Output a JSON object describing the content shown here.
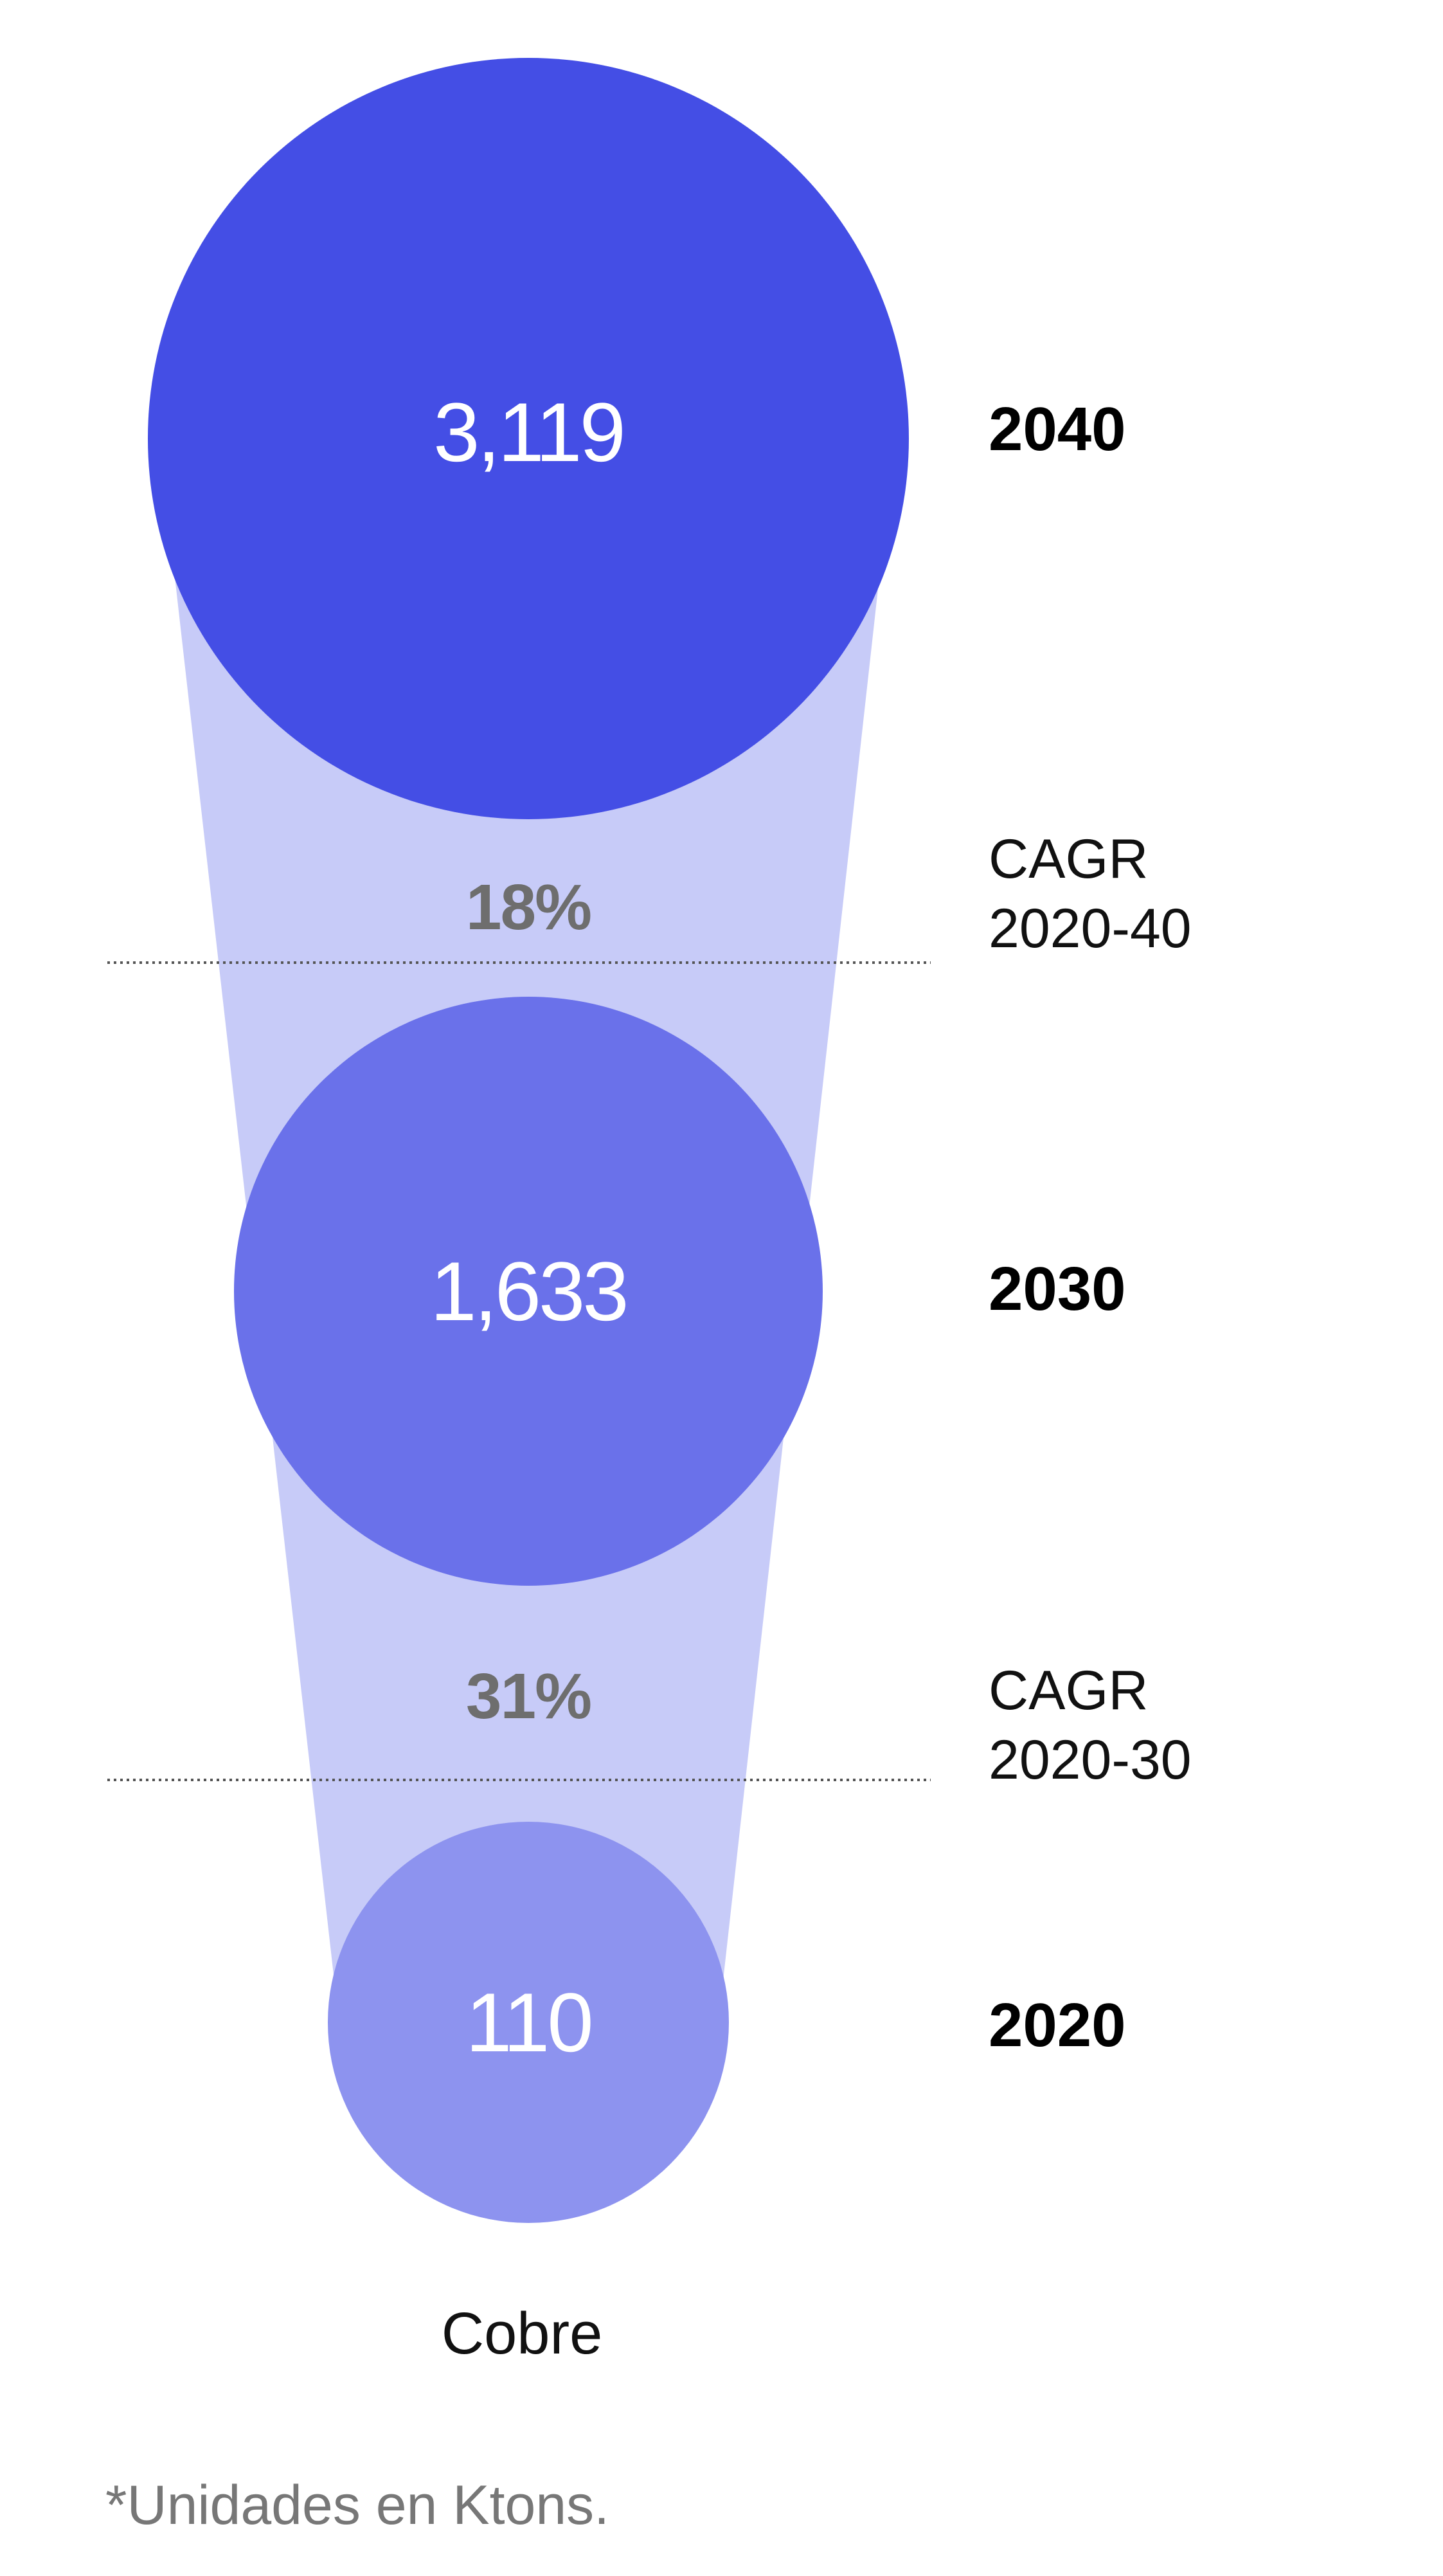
{
  "chart_data": {
    "type": "bubble",
    "category": "Cobre",
    "points": [
      {
        "year": "2040",
        "value": 3119,
        "value_label": "3,119",
        "color": "#444ee5"
      },
      {
        "year": "2030",
        "value": 1633,
        "value_label": "1,633",
        "color": "#6a71ea"
      },
      {
        "year": "2020",
        "value": 110,
        "value_label": "110",
        "color": "#8d93ef"
      }
    ],
    "growth": [
      {
        "value_label": "18%",
        "period_label": "CAGR",
        "period_years": "2020-40"
      },
      {
        "value_label": "31%",
        "period_label": "CAGR",
        "period_years": "2020-30"
      }
    ],
    "footnote": "*Unidades en Ktons.",
    "colors": {
      "funnel": "#c7cbf8",
      "divider": "#555555"
    }
  }
}
